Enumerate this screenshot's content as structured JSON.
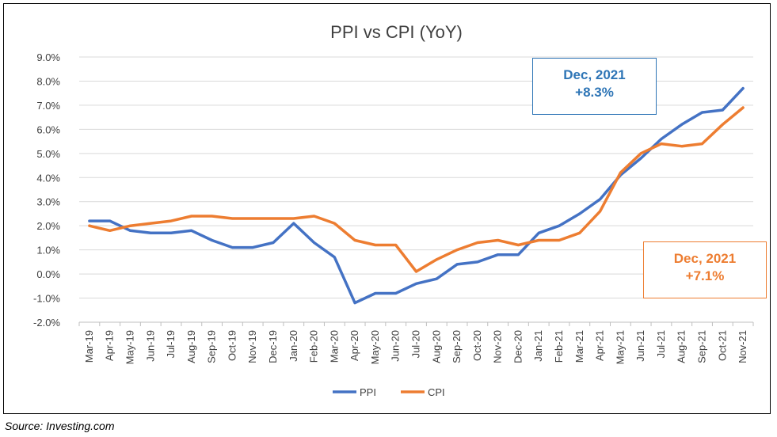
{
  "chart_data": {
    "type": "line",
    "title": "PPI vs CPI (YoY)",
    "categories": [
      "Mar-19",
      "Apr-19",
      "May-19",
      "Jun-19",
      "Jul-19",
      "Aug-19",
      "Sep-19",
      "Oct-19",
      "Nov-19",
      "Dec-19",
      "Jan-20",
      "Feb-20",
      "Mar-20",
      "Apr-20",
      "May-20",
      "Jun-20",
      "Jul-20",
      "Aug-20",
      "Sep-20",
      "Oct-20",
      "Nov-20",
      "Dec-20",
      "Jan-21",
      "Feb-21",
      "Mar-21",
      "Apr-21",
      "May-21",
      "Jun-21",
      "Jul-21",
      "Aug-21",
      "Sep-21",
      "Oct-21",
      "Nov-21"
    ],
    "series": [
      {
        "name": "PPI",
        "color": "#4472C4",
        "values": [
          2.2,
          2.2,
          1.8,
          1.7,
          1.7,
          1.8,
          1.4,
          1.1,
          1.1,
          1.3,
          2.1,
          1.3,
          0.7,
          -1.2,
          -0.8,
          -0.8,
          -0.4,
          -0.2,
          0.4,
          0.5,
          0.8,
          0.8,
          1.7,
          2.0,
          2.5,
          3.1,
          4.1,
          4.8,
          5.6,
          6.2,
          6.7,
          6.8,
          7.7
        ]
      },
      {
        "name": "CPI",
        "color": "#ED7D31",
        "values": [
          2.0,
          1.8,
          2.0,
          2.1,
          2.2,
          2.4,
          2.4,
          2.3,
          2.3,
          2.3,
          2.3,
          2.4,
          2.1,
          1.4,
          1.2,
          1.2,
          0.1,
          0.6,
          1.0,
          1.3,
          1.4,
          1.2,
          1.4,
          1.4,
          1.7,
          2.6,
          4.2,
          5.0,
          5.4,
          5.3,
          5.4,
          6.2,
          6.9
        ]
      }
    ],
    "ylim": [
      -2,
      9
    ],
    "yticks": [
      "-2.0%",
      "-1.0%",
      "0.0%",
      "1.0%",
      "2.0%",
      "3.0%",
      "4.0%",
      "5.0%",
      "6.0%",
      "7.0%",
      "8.0%",
      "9.0%"
    ],
    "grid": true,
    "legend": "bottom",
    "annotations": [
      {
        "line1": "Dec, 2021",
        "line2": "+8.3%",
        "color": "#2E75B6"
      },
      {
        "line1": "Dec, 2021",
        "line2": "+7.1%",
        "color": "#ED7D31"
      }
    ],
    "xlabel": "",
    "ylabel": ""
  },
  "source": "Source:  Investing.com"
}
